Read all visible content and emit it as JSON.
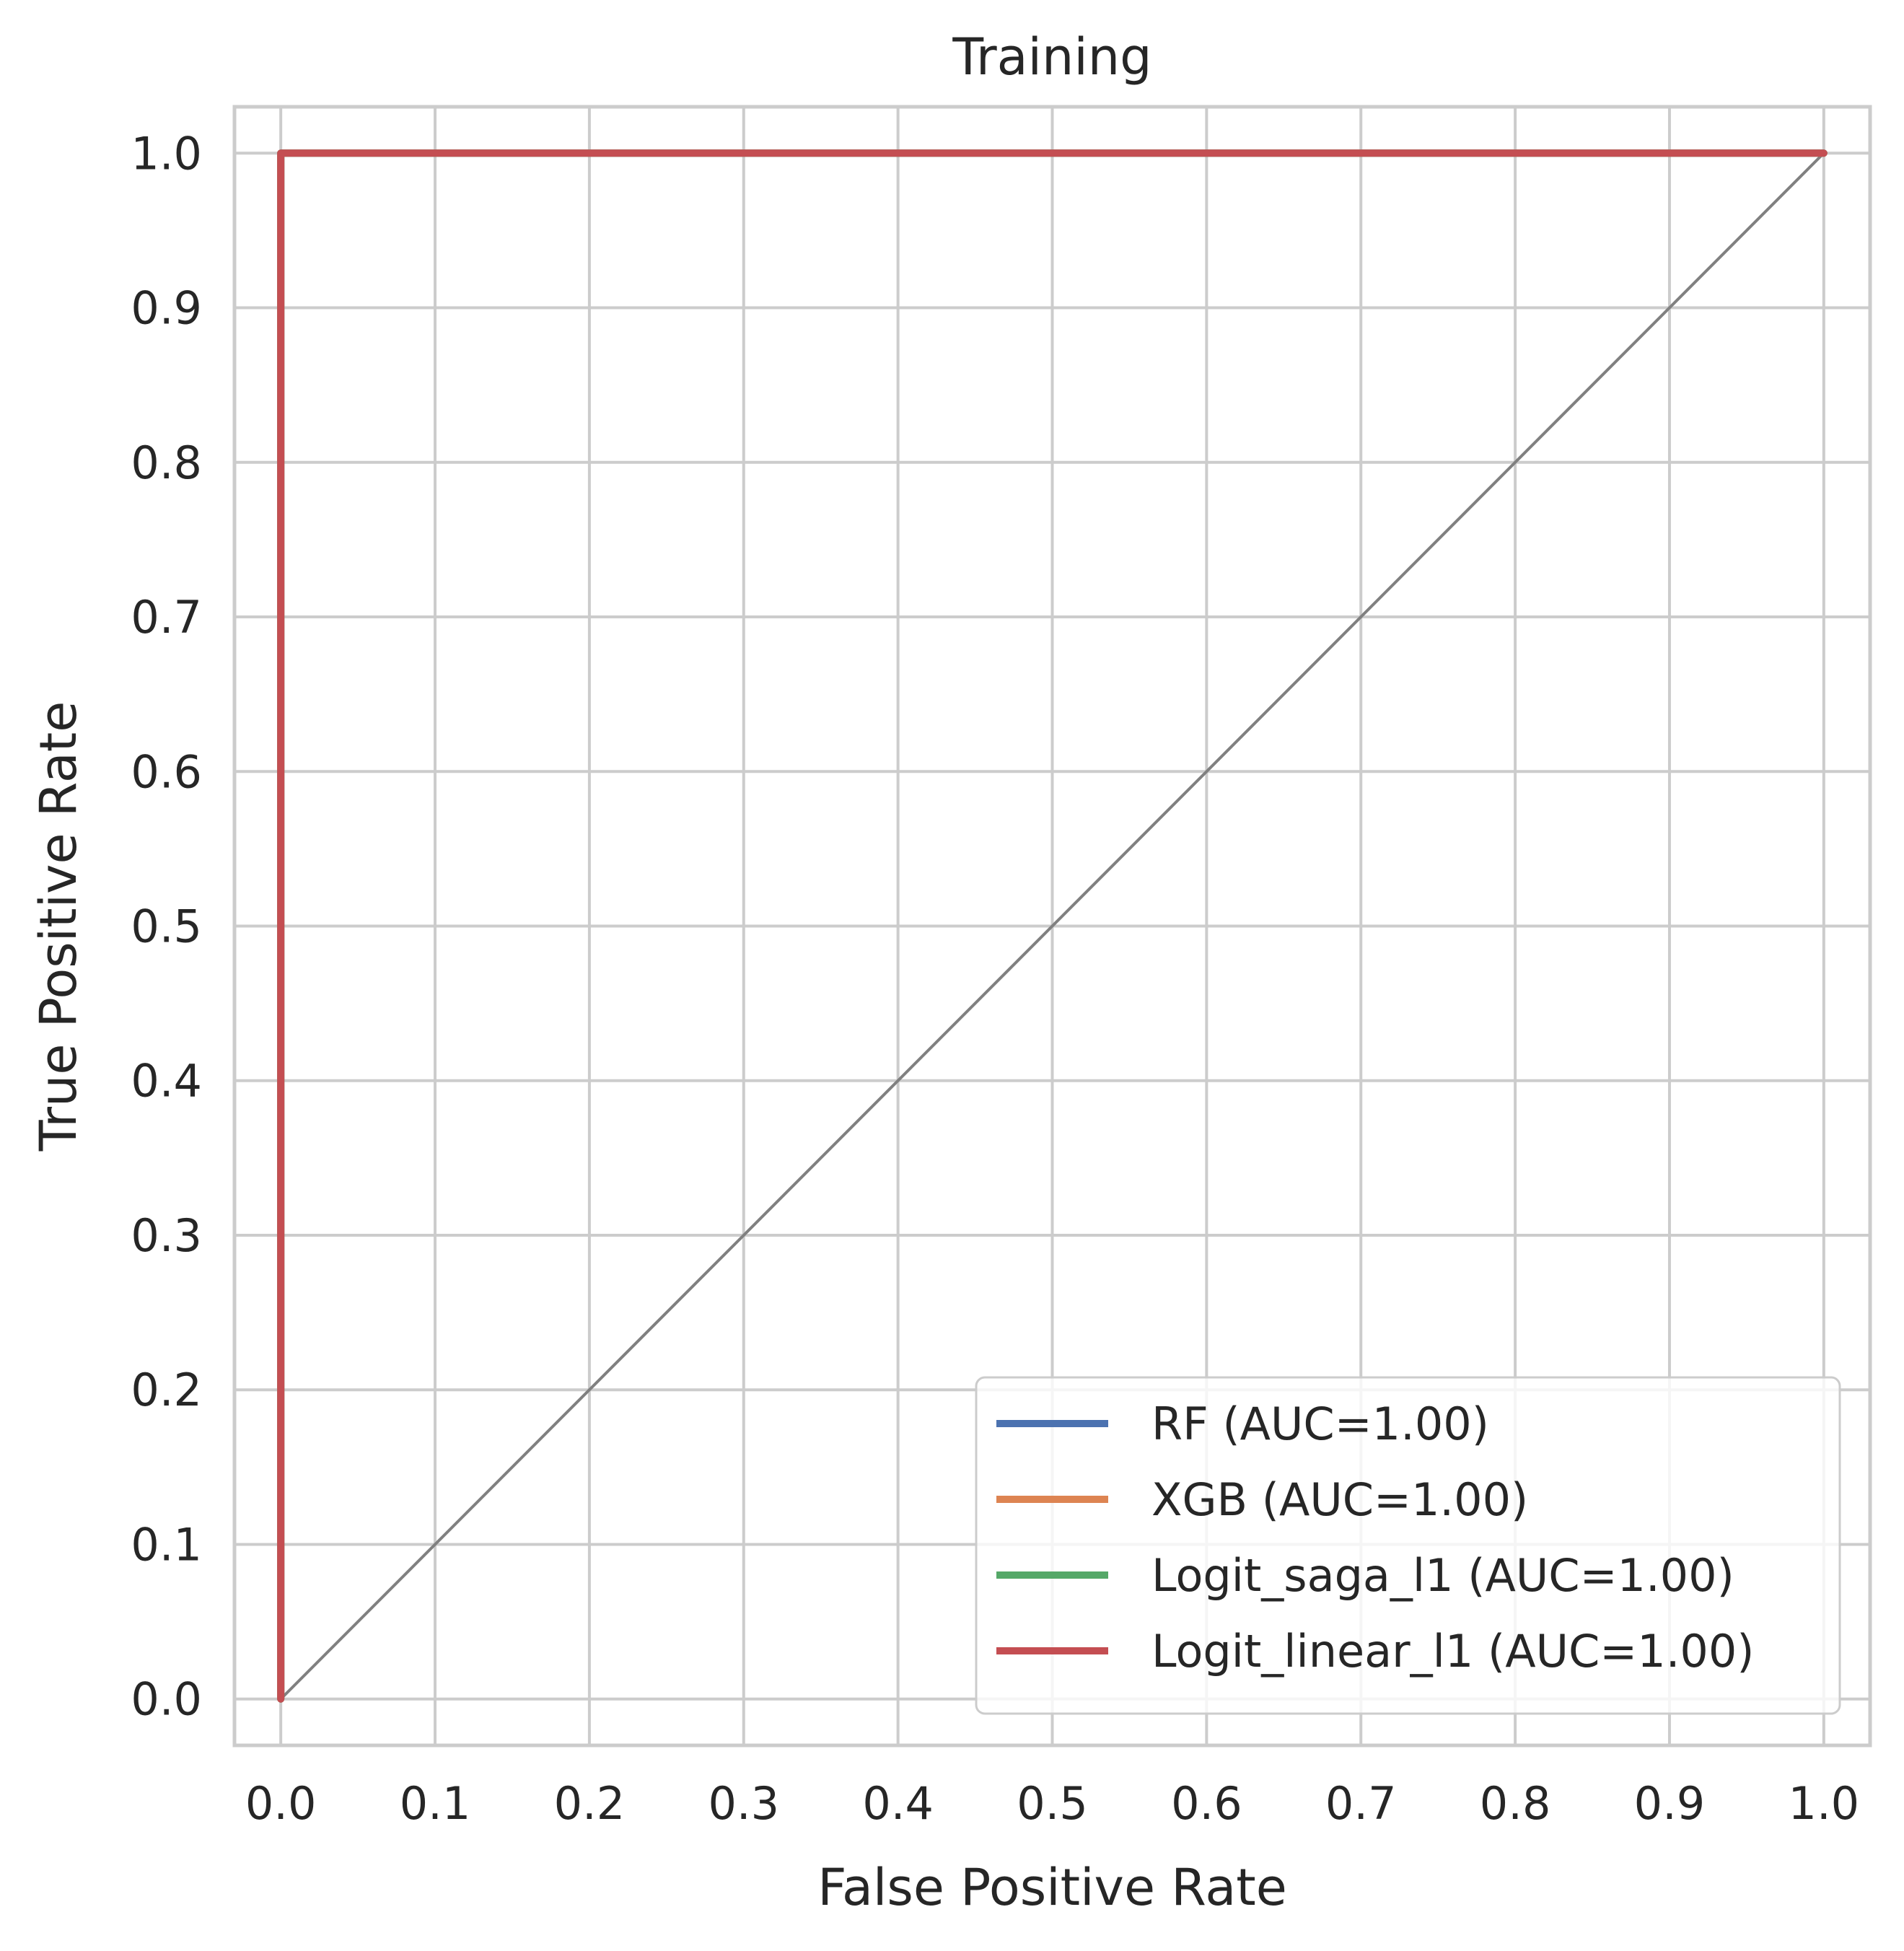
{
  "chart_data": {
    "type": "line",
    "title": "Training",
    "xlabel": "False Positive Rate",
    "ylabel": "True Positive Rate",
    "xlim": [
      -0.03,
      1.03
    ],
    "ylim": [
      -0.03,
      1.03
    ],
    "x_ticks": [
      "0.0",
      "0.1",
      "0.2",
      "0.3",
      "0.4",
      "0.5",
      "0.6",
      "0.7",
      "0.8",
      "0.9",
      "1.0"
    ],
    "y_ticks": [
      "0.0",
      "0.1",
      "0.2",
      "0.3",
      "0.4",
      "0.5",
      "0.6",
      "0.7",
      "0.8",
      "0.9",
      "1.0"
    ],
    "grid": true,
    "legend_position": "lower-right",
    "series": [
      {
        "name": "RF (AUC=1.00)",
        "color": "#4c72b0",
        "x": [
          0,
          0,
          1
        ],
        "y": [
          0,
          1,
          1
        ]
      },
      {
        "name": "XGB (AUC=1.00)",
        "color": "#dd8452",
        "x": [
          0,
          0,
          1
        ],
        "y": [
          0,
          1,
          1
        ]
      },
      {
        "name": "Logit_saga_l1 (AUC=1.00)",
        "color": "#55a868",
        "x": [
          0,
          0,
          1
        ],
        "y": [
          0,
          1,
          1
        ]
      },
      {
        "name": "Logit_linear_l1 (AUC=1.00)",
        "color": "#c44e52",
        "x": [
          0,
          0,
          1
        ],
        "y": [
          0,
          1,
          1
        ]
      }
    ],
    "reference_line": {
      "color": "#808080",
      "x": [
        0,
        1
      ],
      "y": [
        0,
        1
      ]
    },
    "grid_color": "#cccccc",
    "spine_color": "#cccccc"
  }
}
